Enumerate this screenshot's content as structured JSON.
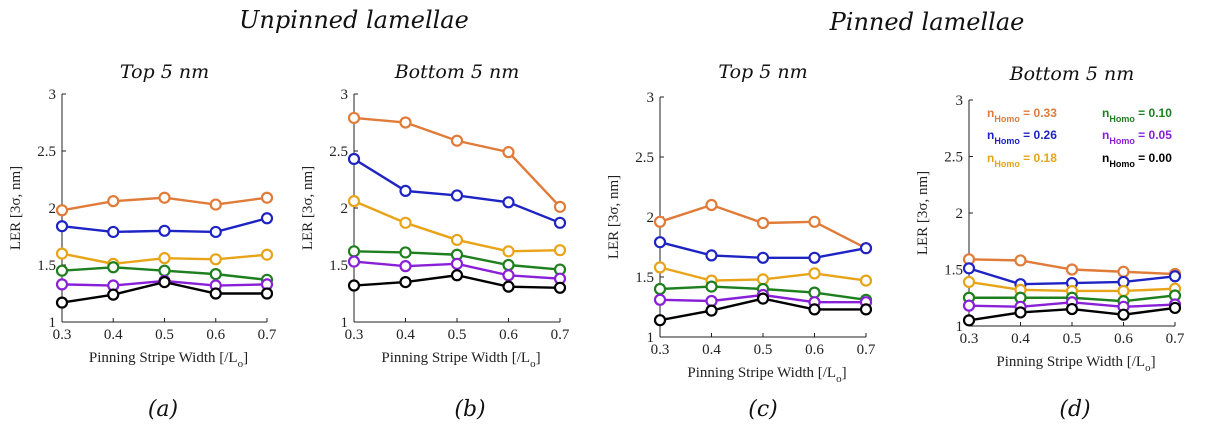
{
  "figure": {
    "group_titles": {
      "left": "Unpinned lamellae",
      "right": "Pinned lamellae"
    },
    "colors": {
      "0.33": "#E07B39",
      "0.26": "#1E23C3",
      "0.18": "#E8A317",
      "0.10": "#1E7F1E",
      "0.05": "#8A1FD8",
      "0.00": "#000000"
    }
  },
  "chart_data": [
    {
      "type": "line",
      "title": "Top 5 nm",
      "caption": "(a)",
      "xlabel": "Pinning Stripe Width [/L",
      "xlabel_sub": "o",
      "xlabel_close": "]",
      "ylabel": "LER [3σ, nm]",
      "x": [
        0.3,
        0.4,
        0.5,
        0.6,
        0.7
      ],
      "xticks": [
        "0.3",
        "0.4",
        "0.5",
        "0.6",
        "0.7"
      ],
      "ylim": [
        1,
        3
      ],
      "yticks": [
        "1",
        "1.5",
        "2",
        "2.5",
        "3"
      ],
      "grid": false,
      "series": [
        {
          "name": "0.33",
          "color": "#E07B39",
          "values": [
            1.98,
            2.06,
            2.09,
            2.03,
            2.09
          ]
        },
        {
          "name": "0.26",
          "color": "#1E23C3",
          "values": [
            1.84,
            1.79,
            1.8,
            1.79,
            1.91
          ]
        },
        {
          "name": "0.18",
          "color": "#E8A317",
          "values": [
            1.6,
            1.51,
            1.56,
            1.55,
            1.59
          ]
        },
        {
          "name": "0.10",
          "color": "#1E7F1E",
          "values": [
            1.45,
            1.48,
            1.45,
            1.42,
            1.37
          ]
        },
        {
          "name": "0.05",
          "color": "#8A1FD8",
          "values": [
            1.33,
            1.32,
            1.36,
            1.32,
            1.33
          ]
        },
        {
          "name": "0.00",
          "color": "#000000",
          "values": [
            1.17,
            1.24,
            1.35,
            1.25,
            1.25
          ]
        }
      ]
    },
    {
      "type": "line",
      "title": "Bottom 5 nm",
      "caption": "(b)",
      "xlabel": "Pinning Stripe Width [/L",
      "xlabel_sub": "o",
      "xlabel_close": "]",
      "ylabel": "LER [3σ, nm]",
      "x": [
        0.3,
        0.4,
        0.5,
        0.6,
        0.7
      ],
      "xticks": [
        "0.3",
        "0.4",
        "0.5",
        "0.6",
        "0.7"
      ],
      "ylim": [
        1,
        3
      ],
      "yticks": [
        "1",
        "1.5",
        "2",
        "2.5",
        "3"
      ],
      "grid": false,
      "series": [
        {
          "name": "0.33",
          "color": "#E07B39",
          "values": [
            2.79,
            2.75,
            2.59,
            2.49,
            2.01
          ]
        },
        {
          "name": "0.26",
          "color": "#1E23C3",
          "values": [
            2.43,
            2.15,
            2.11,
            2.05,
            1.87
          ]
        },
        {
          "name": "0.18",
          "color": "#E8A317",
          "values": [
            2.06,
            1.87,
            1.72,
            1.62,
            1.63
          ]
        },
        {
          "name": "0.10",
          "color": "#1E7F1E",
          "values": [
            1.62,
            1.61,
            1.59,
            1.5,
            1.46
          ]
        },
        {
          "name": "0.05",
          "color": "#8A1FD8",
          "values": [
            1.53,
            1.49,
            1.51,
            1.41,
            1.38
          ]
        },
        {
          "name": "0.00",
          "color": "#000000",
          "values": [
            1.32,
            1.35,
            1.41,
            1.31,
            1.3
          ]
        }
      ]
    },
    {
      "type": "line",
      "title": "Top 5 nm",
      "caption": "(c)",
      "xlabel": "Pinning Stripe Width [/L",
      "xlabel_sub": "o",
      "xlabel_close": "]",
      "ylabel": "LER [3σ, nm]",
      "x": [
        0.3,
        0.4,
        0.5,
        0.6,
        0.7
      ],
      "xticks": [
        "0.3",
        "0.4",
        "0.5",
        "0.6",
        "0.7"
      ],
      "ylim": [
        1,
        3
      ],
      "yticks": [
        "1",
        "1.5",
        "2",
        "2.5",
        "3"
      ],
      "grid": false,
      "series": [
        {
          "name": "0.33",
          "color": "#E07B39",
          "values": [
            1.96,
            2.1,
            1.95,
            1.96,
            1.74
          ]
        },
        {
          "name": "0.26",
          "color": "#1E23C3",
          "values": [
            1.79,
            1.68,
            1.66,
            1.66,
            1.74
          ]
        },
        {
          "name": "0.18",
          "color": "#E8A317",
          "values": [
            1.58,
            1.47,
            1.48,
            1.53,
            1.47
          ]
        },
        {
          "name": "0.10",
          "color": "#1E7F1E",
          "values": [
            1.4,
            1.42,
            1.4,
            1.37,
            1.31
          ]
        },
        {
          "name": "0.05",
          "color": "#8A1FD8",
          "values": [
            1.31,
            1.3,
            1.35,
            1.29,
            1.29
          ]
        },
        {
          "name": "0.00",
          "color": "#000000",
          "values": [
            1.14,
            1.22,
            1.32,
            1.23,
            1.23
          ]
        }
      ]
    },
    {
      "type": "line",
      "title": "Bottom 5 nm",
      "caption": "(d)",
      "xlabel": "Pinning Stripe Width [/L",
      "xlabel_sub": "o",
      "xlabel_close": "]",
      "ylabel": "LER [3σ, nm]",
      "x": [
        0.3,
        0.4,
        0.5,
        0.6,
        0.7
      ],
      "xticks": [
        "0.3",
        "0.4",
        "0.5",
        "0.6",
        "0.7"
      ],
      "ylim": [
        1,
        3
      ],
      "yticks": [
        "1",
        "1.5",
        "2",
        "2.5",
        "3"
      ],
      "grid": false,
      "legend_placement": "top",
      "legend": [
        {
          "prefix": "n",
          "sub": "Homo",
          "value": "= 0.33",
          "color": "#E07B39"
        },
        {
          "prefix": "n",
          "sub": "Homo",
          "value": "= 0.26",
          "color": "#1E23C3"
        },
        {
          "prefix": "n",
          "sub": "Homo",
          "value": "= 0.18",
          "color": "#E8A317"
        },
        {
          "prefix": "n",
          "sub": "Homo",
          "value": "= 0.10",
          "color": "#1E7F1E"
        },
        {
          "prefix": "n",
          "sub": "Homo",
          "value": "= 0.05",
          "color": "#8A1FD8"
        },
        {
          "prefix": "n",
          "sub": "Homo",
          "value": "= 0.00",
          "color": "#000000"
        }
      ],
      "series": [
        {
          "name": "0.33",
          "color": "#E07B39",
          "values": [
            1.59,
            1.58,
            1.5,
            1.48,
            1.46
          ]
        },
        {
          "name": "0.26",
          "color": "#1E23C3",
          "values": [
            1.51,
            1.37,
            1.38,
            1.39,
            1.44
          ]
        },
        {
          "name": "0.18",
          "color": "#E8A317",
          "values": [
            1.39,
            1.32,
            1.31,
            1.31,
            1.33
          ]
        },
        {
          "name": "0.10",
          "color": "#1E7F1E",
          "values": [
            1.25,
            1.25,
            1.25,
            1.22,
            1.27
          ]
        },
        {
          "name": "0.05",
          "color": "#8A1FD8",
          "values": [
            1.18,
            1.17,
            1.21,
            1.17,
            1.19
          ]
        },
        {
          "name": "0.00",
          "color": "#000000",
          "values": [
            1.05,
            1.12,
            1.15,
            1.1,
            1.16
          ]
        }
      ]
    }
  ]
}
